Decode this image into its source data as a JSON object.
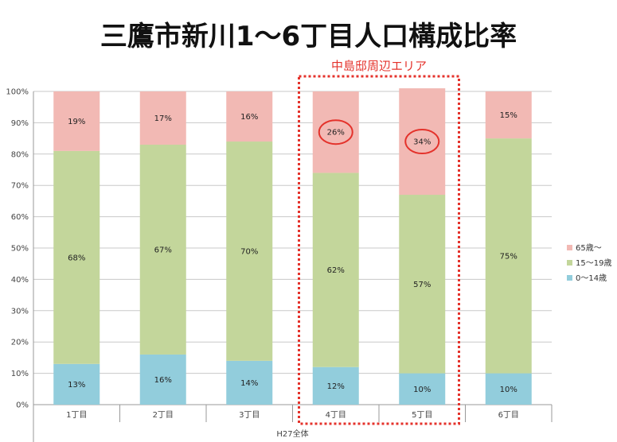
{
  "title": "三鷹市新川1～6丁目人口構成比率",
  "chart_data": {
    "type": "bar",
    "stacked": true,
    "categories": [
      "1丁目",
      "2丁目",
      "3丁目",
      "4丁目",
      "5丁目",
      "6丁目"
    ],
    "group_label": "H27全体",
    "series": [
      {
        "name": "0～14歳",
        "color": "#92cddc",
        "values": [
          13,
          16,
          14,
          12,
          10,
          10
        ],
        "labels": [
          "13%",
          "16%",
          "14%",
          "12%",
          "10%",
          "10%"
        ]
      },
      {
        "name": "15～19歳",
        "color": "#c3d69b",
        "values": [
          68,
          67,
          70,
          62,
          57,
          75
        ],
        "labels": [
          "68%",
          "67%",
          "70%",
          "62%",
          "57%",
          "75%"
        ]
      },
      {
        "name": "65歳～",
        "color": "#f2b9b4",
        "values": [
          19,
          17,
          16,
          26,
          34,
          15
        ],
        "labels": [
          "19%",
          "17%",
          "16%",
          "26%",
          "34%",
          "15%"
        ]
      }
    ],
    "y_ticks": [
      "0%",
      "10%",
      "20%",
      "30%",
      "40%",
      "50%",
      "60%",
      "70%",
      "80%",
      "90%",
      "100%"
    ],
    "ylim": [
      0,
      100
    ],
    "grid": true,
    "legend_position": "right",
    "annotation": {
      "label": "中島邸周辺エリア",
      "color": "#e4322b",
      "highlight_categories": [
        "4丁目",
        "5丁目"
      ],
      "circled": [
        "26%",
        "34%"
      ]
    }
  }
}
